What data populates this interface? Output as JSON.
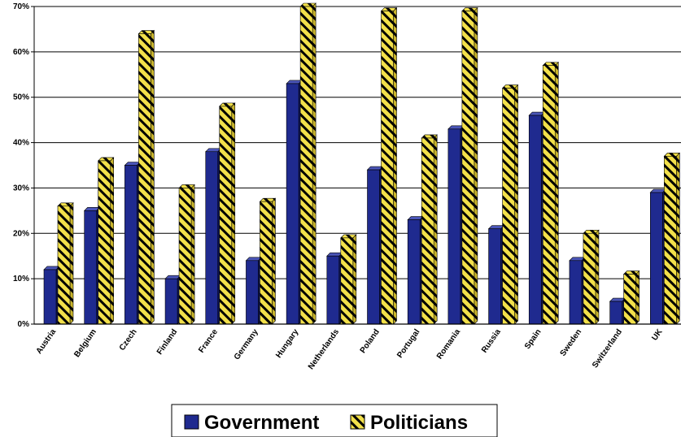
{
  "chart_data": {
    "type": "bar",
    "categories": [
      "Austria",
      "Belgium",
      "Czech",
      "Finland",
      "France",
      "Germany",
      "Hungary",
      "Netherlands",
      "Poland",
      "Portugal",
      "Romania",
      "Russia",
      "Spain",
      "Sweden",
      "Switzerland",
      "UK"
    ],
    "series": [
      {
        "name": "Government",
        "values": [
          12,
          25,
          35,
          10,
          38,
          14,
          53,
          15,
          34,
          23,
          43,
          21,
          46,
          14,
          5,
          29
        ]
      },
      {
        "name": "Politicians",
        "values": [
          26,
          36,
          64,
          30,
          48,
          27,
          70,
          19,
          69,
          41,
          69,
          52,
          57,
          20,
          11,
          37
        ]
      }
    ],
    "y_ticks": [
      "0%",
      "10%",
      "20%",
      "30%",
      "40%",
      "50%",
      "60%",
      "70%"
    ],
    "ylim": [
      0,
      70
    ],
    "grid": true,
    "legend_position": "bottom",
    "colors": {
      "government": "#1f2a8f",
      "government_side": "#10175a",
      "government_top": "#4a55b8",
      "politicians": "#f2e04a",
      "politicians_stripe": "#000000",
      "gridline": "#000000"
    }
  }
}
